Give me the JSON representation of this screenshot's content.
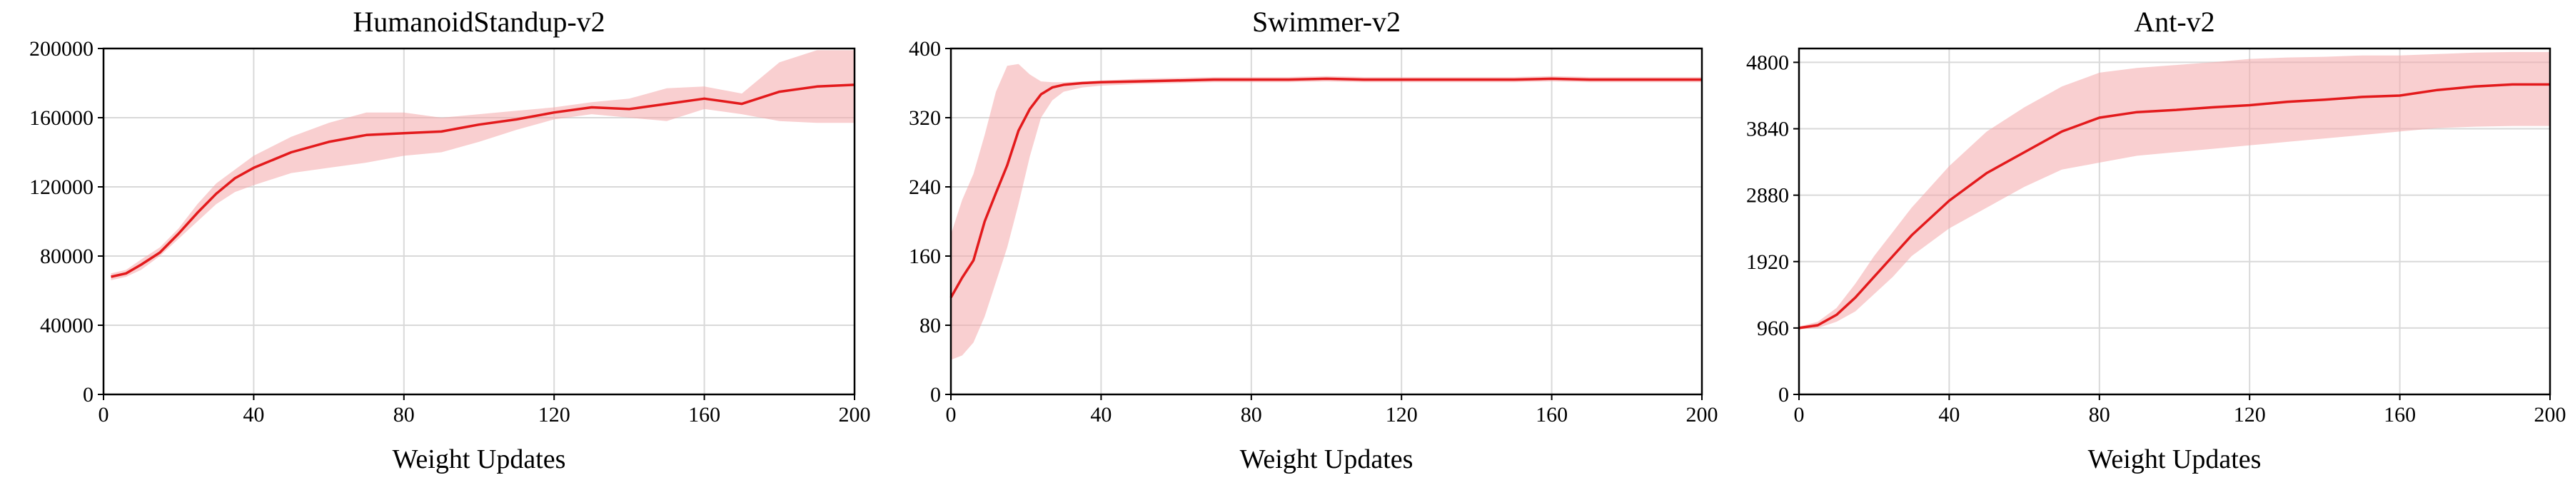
{
  "colors": {
    "line": "#e31a1c",
    "band": "#f4a7aa",
    "grid": "#d9d9d9",
    "axis": "#000000"
  },
  "chart_data": [
    {
      "type": "line",
      "title": "HumanoidStandup-v2",
      "xlabel": "Weight Updates",
      "ylabel": "",
      "xlim": [
        0,
        200
      ],
      "ylim": [
        0,
        200000
      ],
      "xticks": [
        0,
        40,
        80,
        120,
        160,
        200
      ],
      "yticks": [
        0,
        40000,
        80000,
        120000,
        160000,
        200000
      ],
      "xtick_labels": [
        "0",
        "40",
        "80",
        "120",
        "160",
        "200"
      ],
      "ytick_labels": [
        "0",
        "40000",
        "80000",
        "120000",
        "160000",
        "200000"
      ],
      "grid": true,
      "series": [
        {
          "x": [
            2,
            6,
            10,
            15,
            20,
            25,
            30,
            35,
            40,
            50,
            60,
            70,
            80,
            90,
            100,
            110,
            120,
            130,
            140,
            150,
            160,
            170,
            180,
            190,
            200
          ],
          "mean": [
            68000,
            70000,
            75000,
            82000,
            93000,
            105000,
            116000,
            125000,
            131000,
            140000,
            146000,
            150000,
            151000,
            152000,
            156000,
            159000,
            163000,
            166000,
            165000,
            168000,
            171000,
            168000,
            175000,
            178000,
            179000
          ],
          "lower": [
            66000,
            68000,
            72000,
            80000,
            90000,
            100000,
            110000,
            117000,
            121000,
            128000,
            131000,
            134000,
            138000,
            140000,
            146000,
            153000,
            159000,
            162000,
            160000,
            158000,
            165000,
            162000,
            158000,
            157000,
            157000
          ],
          "upper": [
            70000,
            72000,
            78000,
            85000,
            96000,
            110000,
            122000,
            130000,
            138000,
            149000,
            157000,
            163000,
            163000,
            160000,
            162000,
            164000,
            166000,
            169000,
            171000,
            177000,
            178000,
            174000,
            192000,
            199000,
            199000
          ]
        }
      ]
    },
    {
      "type": "line",
      "title": "Swimmer-v2",
      "xlabel": "Weight Updates",
      "ylabel": "",
      "xlim": [
        0,
        200
      ],
      "ylim": [
        0,
        400
      ],
      "xticks": [
        0,
        40,
        80,
        120,
        160,
        200
      ],
      "yticks": [
        0,
        80,
        160,
        240,
        320,
        400
      ],
      "xtick_labels": [
        "0",
        "40",
        "80",
        "120",
        "160",
        "200"
      ],
      "ytick_labels": [
        "0",
        "80",
        "160",
        "240",
        "320",
        "400"
      ],
      "grid": true,
      "series": [
        {
          "x": [
            0,
            3,
            6,
            9,
            12,
            15,
            18,
            21,
            24,
            27,
            30,
            35,
            40,
            50,
            60,
            70,
            80,
            90,
            100,
            110,
            120,
            130,
            140,
            150,
            160,
            170,
            180,
            190,
            200
          ],
          "mean": [
            112,
            135,
            155,
            200,
            233,
            265,
            305,
            330,
            347,
            355,
            358,
            360,
            361,
            362,
            363,
            364,
            364,
            364,
            365,
            364,
            364,
            364,
            364,
            364,
            365,
            364,
            364,
            364,
            364
          ],
          "lower": [
            40,
            45,
            60,
            90,
            130,
            170,
            220,
            275,
            320,
            340,
            350,
            355,
            357,
            359,
            360,
            361,
            361,
            361,
            362,
            361,
            361,
            361,
            361,
            361,
            362,
            361,
            361,
            361,
            361
          ],
          "upper": [
            185,
            225,
            255,
            300,
            350,
            380,
            382,
            370,
            362,
            361,
            361,
            362,
            363,
            365,
            366,
            367,
            367,
            367,
            368,
            367,
            367,
            367,
            367,
            367,
            368,
            367,
            367,
            367,
            367
          ]
        }
      ]
    },
    {
      "type": "line",
      "title": "Ant-v2",
      "xlabel": "Weight Updates",
      "ylabel": "",
      "xlim": [
        0,
        200
      ],
      "ylim": [
        0,
        5000
      ],
      "xticks": [
        0,
        40,
        80,
        120,
        160,
        200
      ],
      "yticks": [
        0,
        960,
        1920,
        2880,
        3840,
        4800
      ],
      "xtick_labels": [
        "0",
        "40",
        "80",
        "120",
        "160",
        "200"
      ],
      "ytick_labels": [
        "0",
        "960",
        "1920",
        "2880",
        "3840",
        "4800"
      ],
      "grid": true,
      "series": [
        {
          "x": [
            0,
            5,
            10,
            15,
            20,
            25,
            30,
            40,
            50,
            60,
            70,
            80,
            90,
            100,
            110,
            120,
            130,
            140,
            150,
            160,
            170,
            180,
            190,
            200
          ],
          "mean": [
            960,
            1000,
            1150,
            1400,
            1700,
            2000,
            2300,
            2800,
            3200,
            3500,
            3800,
            4000,
            4080,
            4110,
            4150,
            4180,
            4230,
            4260,
            4300,
            4320,
            4400,
            4450,
            4480,
            4480
          ],
          "lower": [
            940,
            960,
            1050,
            1200,
            1450,
            1700,
            2000,
            2400,
            2700,
            3000,
            3250,
            3350,
            3450,
            3500,
            3550,
            3600,
            3650,
            3700,
            3750,
            3800,
            3850,
            3870,
            3880,
            3880
          ],
          "upper": [
            980,
            1050,
            1250,
            1600,
            2000,
            2350,
            2700,
            3300,
            3800,
            4150,
            4450,
            4650,
            4720,
            4760,
            4800,
            4850,
            4870,
            4880,
            4900,
            4900,
            4920,
            4940,
            4950,
            4950
          ]
        }
      ]
    }
  ]
}
